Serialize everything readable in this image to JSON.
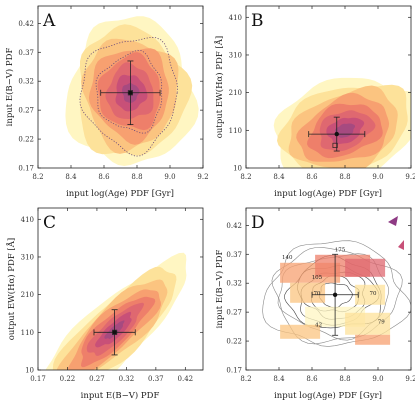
{
  "chart_data": [
    {
      "type": "contour",
      "panel_label": "A",
      "xlabel": "input log(Age) PDF [Gyr]",
      "ylabel": "input E(B−V) PDF",
      "xlim": [
        8.2,
        9.2
      ],
      "ylim": [
        0.17,
        0.45
      ],
      "xticks": [
        "8.2",
        "8.4",
        "8.6",
        "8.8",
        "9.0",
        "9.2"
      ],
      "yticks": [
        "0.17",
        "0.22",
        "0.27",
        "0.32",
        "0.37",
        "0.42"
      ],
      "center": {
        "x": 8.76,
        "y": 0.3
      },
      "spread": {
        "x": 0.2,
        "y": 0.067
      },
      "errorbar": {
        "x": 8.76,
        "y": 0.3,
        "xerr": 0.18,
        "yerr": 0.055
      },
      "true_value": {
        "x": 8.76,
        "y": 0.3
      },
      "dotted_contours": 2,
      "filled_levels": 7
    },
    {
      "type": "contour",
      "panel_label": "B",
      "xlabel": "input log(Age) PDF [Gyr]",
      "ylabel": "output EW(Hα) PDF [Å]",
      "xlim": [
        8.2,
        9.2
      ],
      "ylim": [
        10,
        440
      ],
      "xticks": [
        "8.2",
        "8.4",
        "8.6",
        "8.8",
        "9.0",
        "9.2"
      ],
      "yticks": [
        "10",
        "110",
        "210",
        "310",
        "410"
      ],
      "center": {
        "x": 8.8,
        "y": 110
      },
      "spread": {
        "x": 0.24,
        "y": 70
      },
      "errorbar": {
        "x": 8.75,
        "y": 100,
        "xerr": 0.17,
        "yerr": 45
      },
      "true_value": {
        "x": 8.74,
        "y": 70
      },
      "filled_levels": 7
    },
    {
      "type": "contour",
      "panel_label": "C",
      "xlabel": "input E(B−V) PDF",
      "ylabel": "output EW(Hα) PDF [Å]",
      "xlim": [
        0.17,
        0.45
      ],
      "ylim": [
        10,
        440
      ],
      "xticks": [
        "0.17",
        "0.22",
        "0.27",
        "0.32",
        "0.37",
        "0.42"
      ],
      "yticks": [
        "10",
        "110",
        "210",
        "310",
        "410"
      ],
      "center": {
        "x": 0.3,
        "y": 115
      },
      "spread": {
        "x": 0.055,
        "y": 75
      },
      "errorbar": {
        "x": 0.3,
        "y": 110,
        "xerr": 0.035,
        "yerr": 60
      },
      "true_value": {
        "x": 0.3,
        "y": 110
      },
      "filled_levels": 7
    },
    {
      "type": "contour",
      "panel_label": "D",
      "xlabel": "input log(Age) PDF [Gyr]",
      "ylabel": "input E(B−V) PDF",
      "xlim": [
        8.2,
        9.2
      ],
      "ylim": [
        0.17,
        0.45
      ],
      "xticks": [
        "8.2",
        "8.4",
        "8.6",
        "8.8",
        "9.0",
        "9.2"
      ],
      "yticks": [
        "0.17",
        "0.22",
        "0.27",
        "0.32",
        "0.37",
        "0.42"
      ],
      "contour_labels": [
        {
          "text": "140",
          "x": 8.45,
          "y": 0.362
        },
        {
          "text": "175",
          "x": 8.77,
          "y": 0.375
        },
        {
          "text": "105",
          "x": 8.63,
          "y": 0.327
        },
        {
          "text": "70",
          "x": 8.63,
          "y": 0.3
        },
        {
          "text": "70",
          "x": 8.97,
          "y": 0.3
        },
        {
          "text": "42",
          "x": 8.64,
          "y": 0.245
        },
        {
          "text": "79",
          "x": 9.02,
          "y": 0.25
        }
      ],
      "errorbar": {
        "x": 8.74,
        "y": 0.3,
        "xerr": 0.14,
        "yerr": 0.07
      }
    }
  ],
  "colors": {
    "levels": [
      "#fff6c2",
      "#fde29a",
      "#fbc480",
      "#f7a070",
      "#ee7f6a",
      "#df6870",
      "#c85078"
    ],
    "heatmap_low": "#fff6c2",
    "heatmap_high": "#8e3a84"
  }
}
